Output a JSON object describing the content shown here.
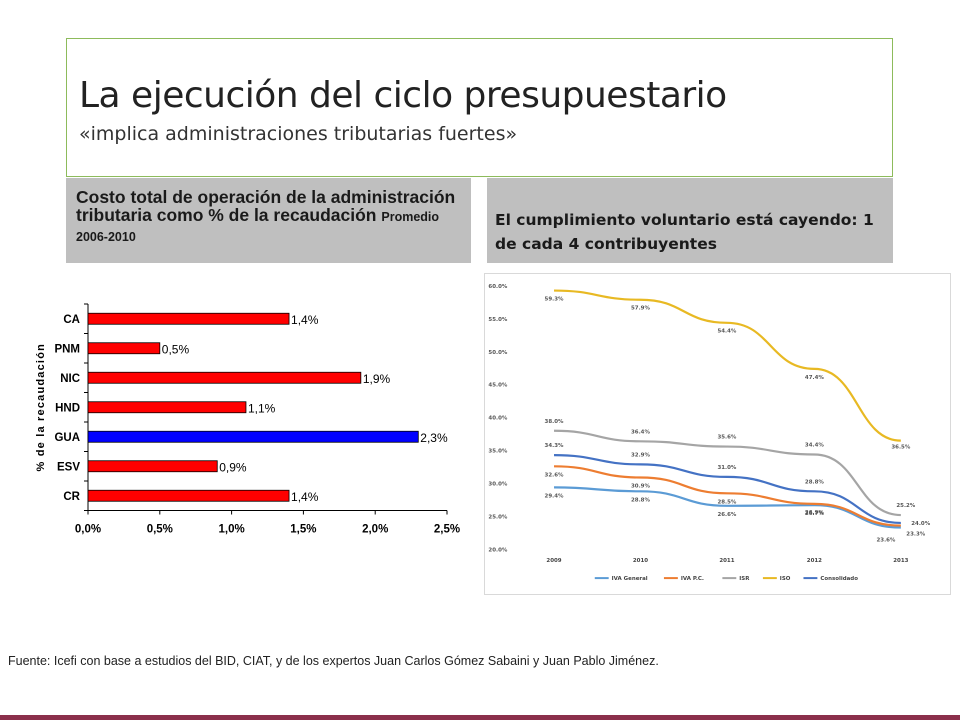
{
  "title": "La ejecución del ciclo presupuestario",
  "subtitle": "«implica administraciones tributarias fuertes»",
  "left_header": {
    "main": "Costo total de operación de la administración tributaria como % de la recaudación",
    "small": "Promedio 2006-2010"
  },
  "right_header": "El cumplimiento voluntario está cayendo: 1 de cada 4 contribuyentes",
  "source": "Fuente: Icefi con base a estudios del BID, CIAT, y de los expertos Juan Carlos Gómez Sabaini y Juan Pablo Jiménez.",
  "colors": {
    "bar_default": "#ff0000",
    "bar_highlight": "#0000ff",
    "title_border": "#8dbb5b",
    "header_bg": "#bfbfbf",
    "bottom_line": "#8b2f4b"
  },
  "chart_data": [
    {
      "type": "bar",
      "orientation": "horizontal",
      "categories": [
        "CA",
        "PNM",
        "NIC",
        "HND",
        "GUA",
        "ESV",
        "CR"
      ],
      "values": [
        1.4,
        0.5,
        1.9,
        1.1,
        2.3,
        0.9,
        1.4
      ],
      "data_labels": [
        "1,4%",
        "0,5%",
        "1,9%",
        "1,1%",
        "2,3%",
        "0,9%",
        "1,4%"
      ],
      "highlight": "GUA",
      "ylabel": "% de la recaudación",
      "xlim": [
        0,
        2.5
      ],
      "x_ticks": [
        "0,0%",
        "0,5%",
        "1,0%",
        "1,5%",
        "2,0%",
        "2,5%"
      ]
    },
    {
      "type": "line",
      "x": [
        "2009",
        "2010",
        "2011",
        "2012",
        "2013"
      ],
      "ylim": [
        20,
        60
      ],
      "y_ticks": [
        "60.0%",
        "55.0%",
        "50.0%",
        "45.0%",
        "40.0%",
        "35.0%",
        "30.0%",
        "25.0%",
        "20.0%"
      ],
      "legend_position": "bottom",
      "grid": false,
      "series": [
        {
          "name": "IVA General",
          "color": "#5b9bd5",
          "values": [
            29.4,
            28.8,
            26.6,
            26.7,
            23.3
          ],
          "labels": [
            "29.4%",
            "28.8%",
            "26.6%",
            "26.7%",
            "23.3%"
          ]
        },
        {
          "name": "IVA P.C.",
          "color": "#ed7d31",
          "values": [
            32.6,
            30.9,
            28.5,
            26.9,
            23.6
          ],
          "labels": [
            "32.6%",
            "30.9%",
            "28.5%",
            "26.9%",
            "23.6%"
          ]
        },
        {
          "name": "ISR",
          "color": "#a5a5a5",
          "values": [
            38.0,
            36.4,
            35.6,
            34.4,
            25.2
          ],
          "labels": [
            "38.0%",
            "36.4%",
            "35.6%",
            "34.4%",
            "25.2%"
          ]
        },
        {
          "name": "ISO",
          "color": "#e8b923",
          "values": [
            59.3,
            57.9,
            54.4,
            47.4,
            36.5
          ],
          "labels": [
            "59.3%",
            "57.9%",
            "54.4%",
            "47.4%",
            "36.5%"
          ]
        },
        {
          "name": "Consolidado",
          "color": "#4472c4",
          "values": [
            34.3,
            32.9,
            31.0,
            28.8,
            24.0
          ],
          "labels": [
            "34.3%",
            "32.9%",
            "31.0%",
            "28.8%",
            "24.0%"
          ]
        }
      ]
    }
  ]
}
